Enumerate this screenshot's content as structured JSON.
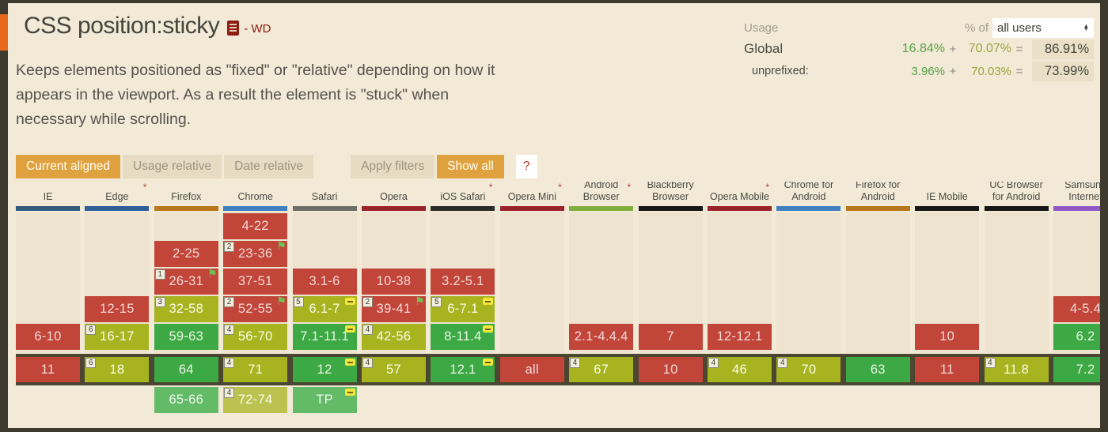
{
  "feature": {
    "title": "CSS position:sticky",
    "status": "- WD",
    "description": "Keeps elements positioned as \"fixed\" or \"relative\" depending on how it appears in the viewport. As a result the element is \"stuck\" when necessary while scrolling."
  },
  "usage": {
    "label": "Usage",
    "percent_of_label": "% of",
    "select_value": "all users",
    "rows": [
      {
        "label": "Global",
        "partial": "16.84%",
        "plus": "+",
        "full": "70.07%",
        "equals": "=",
        "total": "86.91%",
        "sub": false
      },
      {
        "label": "unprefixed:",
        "partial": "3.96%",
        "plus": "+",
        "full": "70.03%",
        "equals": "=",
        "total": "73.99%",
        "sub": true
      }
    ]
  },
  "toolbar": {
    "buttons": [
      {
        "label": "Current aligned",
        "active": true,
        "gap": false,
        "help": false
      },
      {
        "label": "Usage relative",
        "active": false,
        "gap": false,
        "help": false
      },
      {
        "label": "Date relative",
        "active": false,
        "gap": false,
        "help": false
      },
      {
        "label": "Apply filters",
        "active": false,
        "gap": true,
        "help": false
      },
      {
        "label": "Show all",
        "active": true,
        "gap": false,
        "help": false
      },
      {
        "label": "?",
        "active": false,
        "gap": false,
        "help": true
      }
    ]
  },
  "colors": {
    "page_bg": "#F2E9D7",
    "frame": "#3E3A2D",
    "accent_orange": "#E8681E",
    "active_button": "#E0A23E",
    "not_supported": "#C2453A",
    "partial_support": "#A7B41F",
    "supported": "#3DA944",
    "current_band": "#4A4632"
  },
  "table": {
    "columns": [
      {
        "name": "IE",
        "asterisk": false,
        "bar": "#33597E",
        "cells": [
          {
            "row": 5,
            "label": "6-10",
            "support": "n"
          },
          {
            "row": 6,
            "label": "11",
            "support": "n"
          }
        ]
      },
      {
        "name": "Edge",
        "asterisk": true,
        "bar": "#2E5F96",
        "cells": [
          {
            "row": 4,
            "label": "12-15",
            "support": "n"
          },
          {
            "row": 5,
            "label": "16-17",
            "support": "p",
            "note": "6"
          },
          {
            "row": 6,
            "label": "18",
            "support": "p",
            "note": "6"
          }
        ]
      },
      {
        "name": "Firefox",
        "asterisk": false,
        "bar": "#B9761A",
        "cells": [
          {
            "row": 2,
            "label": "2-25",
            "support": "n"
          },
          {
            "row": 3,
            "label": "26-31",
            "support": "n",
            "note": "1",
            "flag": true
          },
          {
            "row": 4,
            "label": "32-58",
            "support": "p",
            "note": "3"
          },
          {
            "row": 5,
            "label": "59-63",
            "support": "y"
          },
          {
            "row": 6,
            "label": "64",
            "support": "y"
          },
          {
            "row": 7,
            "label": "65-66",
            "support": "yf"
          }
        ]
      },
      {
        "name": "Chrome",
        "asterisk": false,
        "bar": "#3E80C0",
        "cells": [
          {
            "row": 1,
            "label": "4-22",
            "support": "n"
          },
          {
            "row": 2,
            "label": "23-36",
            "support": "n",
            "note": "2",
            "flag": true
          },
          {
            "row": 3,
            "label": "37-51",
            "support": "n"
          },
          {
            "row": 4,
            "label": "52-55",
            "support": "n",
            "note": "2",
            "flag": true
          },
          {
            "row": 5,
            "label": "56-70",
            "support": "p",
            "note": "4"
          },
          {
            "row": 6,
            "label": "71",
            "support": "p",
            "note": "4"
          },
          {
            "row": 7,
            "label": "72-74",
            "support": "pf",
            "note": "4"
          }
        ]
      },
      {
        "name": "Safari",
        "asterisk": false,
        "bar": "#6E6E66",
        "cells": [
          {
            "row": 3,
            "label": "3.1-6",
            "support": "n"
          },
          {
            "row": 4,
            "label": "6.1-7",
            "support": "p",
            "note": "5",
            "minus": true
          },
          {
            "row": 5,
            "label": "7.1-11.1",
            "support": "y",
            "minus": true
          },
          {
            "row": 6,
            "label": "12",
            "support": "y",
            "minus": true
          },
          {
            "row": 7,
            "label": "TP",
            "support": "yf",
            "minus": true
          }
        ]
      },
      {
        "name": "Opera",
        "asterisk": false,
        "bar": "#99232A",
        "cells": [
          {
            "row": 3,
            "label": "10-38",
            "support": "n"
          },
          {
            "row": 4,
            "label": "39-41",
            "support": "n",
            "note": "2",
            "flag": true
          },
          {
            "row": 5,
            "label": "42-56",
            "support": "p",
            "note": "4"
          },
          {
            "row": 6,
            "label": "57",
            "support": "p",
            "note": "4"
          }
        ]
      },
      {
        "name": "iOS Safari",
        "asterisk": true,
        "bar": "#2B2B28",
        "cells": [
          {
            "row": 3,
            "label": "3.2-5.1",
            "support": "n"
          },
          {
            "row": 4,
            "label": "6-7.1",
            "support": "p",
            "note": "5",
            "minus": true
          },
          {
            "row": 5,
            "label": "8-11.4",
            "support": "y",
            "minus": true
          },
          {
            "row": 6,
            "label": "12.1",
            "support": "y",
            "minus": true
          }
        ]
      },
      {
        "name": "Opera Mini",
        "asterisk": true,
        "bar": "#99232A",
        "cells": [
          {
            "row": 6,
            "label": "all",
            "support": "n"
          }
        ]
      },
      {
        "name": "Android Browser",
        "asterisk": true,
        "bar": "#7FAE3F",
        "cells": [
          {
            "row": 5,
            "label": "2.1-4.4.4",
            "support": "n"
          },
          {
            "row": 6,
            "label": "67",
            "support": "p",
            "note": "4"
          }
        ]
      },
      {
        "name": "Blackberry Browser",
        "asterisk": false,
        "bar": "#161616",
        "cells": [
          {
            "row": 5,
            "label": "7",
            "support": "n"
          },
          {
            "row": 6,
            "label": "10",
            "support": "n"
          }
        ]
      },
      {
        "name": "Opera Mobile",
        "asterisk": true,
        "bar": "#99232A",
        "cells": [
          {
            "row": 5,
            "label": "12-12.1",
            "support": "n"
          },
          {
            "row": 6,
            "label": "46",
            "support": "p",
            "note": "4"
          }
        ]
      },
      {
        "name": "Chrome for Android",
        "asterisk": false,
        "bar": "#3E80C0",
        "cells": [
          {
            "row": 6,
            "label": "70",
            "support": "p",
            "note": "4"
          }
        ]
      },
      {
        "name": "Firefox for Android",
        "asterisk": false,
        "bar": "#B9761A",
        "cells": [
          {
            "row": 6,
            "label": "63",
            "support": "y"
          }
        ]
      },
      {
        "name": "IE Mobile",
        "asterisk": false,
        "bar": "#161616",
        "cells": [
          {
            "row": 5,
            "label": "10",
            "support": "n"
          },
          {
            "row": 6,
            "label": "11",
            "support": "n"
          }
        ]
      },
      {
        "name": "UC Browser for Android",
        "asterisk": false,
        "bar": "#161616",
        "cells": [
          {
            "row": 6,
            "label": "11.8",
            "support": "p",
            "note": "4"
          }
        ]
      },
      {
        "name": "Samsung Internet",
        "asterisk": false,
        "bar": "#9159C8",
        "cells": [
          {
            "row": 4,
            "label": "4-5.4",
            "support": "n"
          },
          {
            "row": 5,
            "label": "6.2",
            "support": "y"
          },
          {
            "row": 6,
            "label": "7.2",
            "support": "y"
          }
        ]
      }
    ]
  }
}
